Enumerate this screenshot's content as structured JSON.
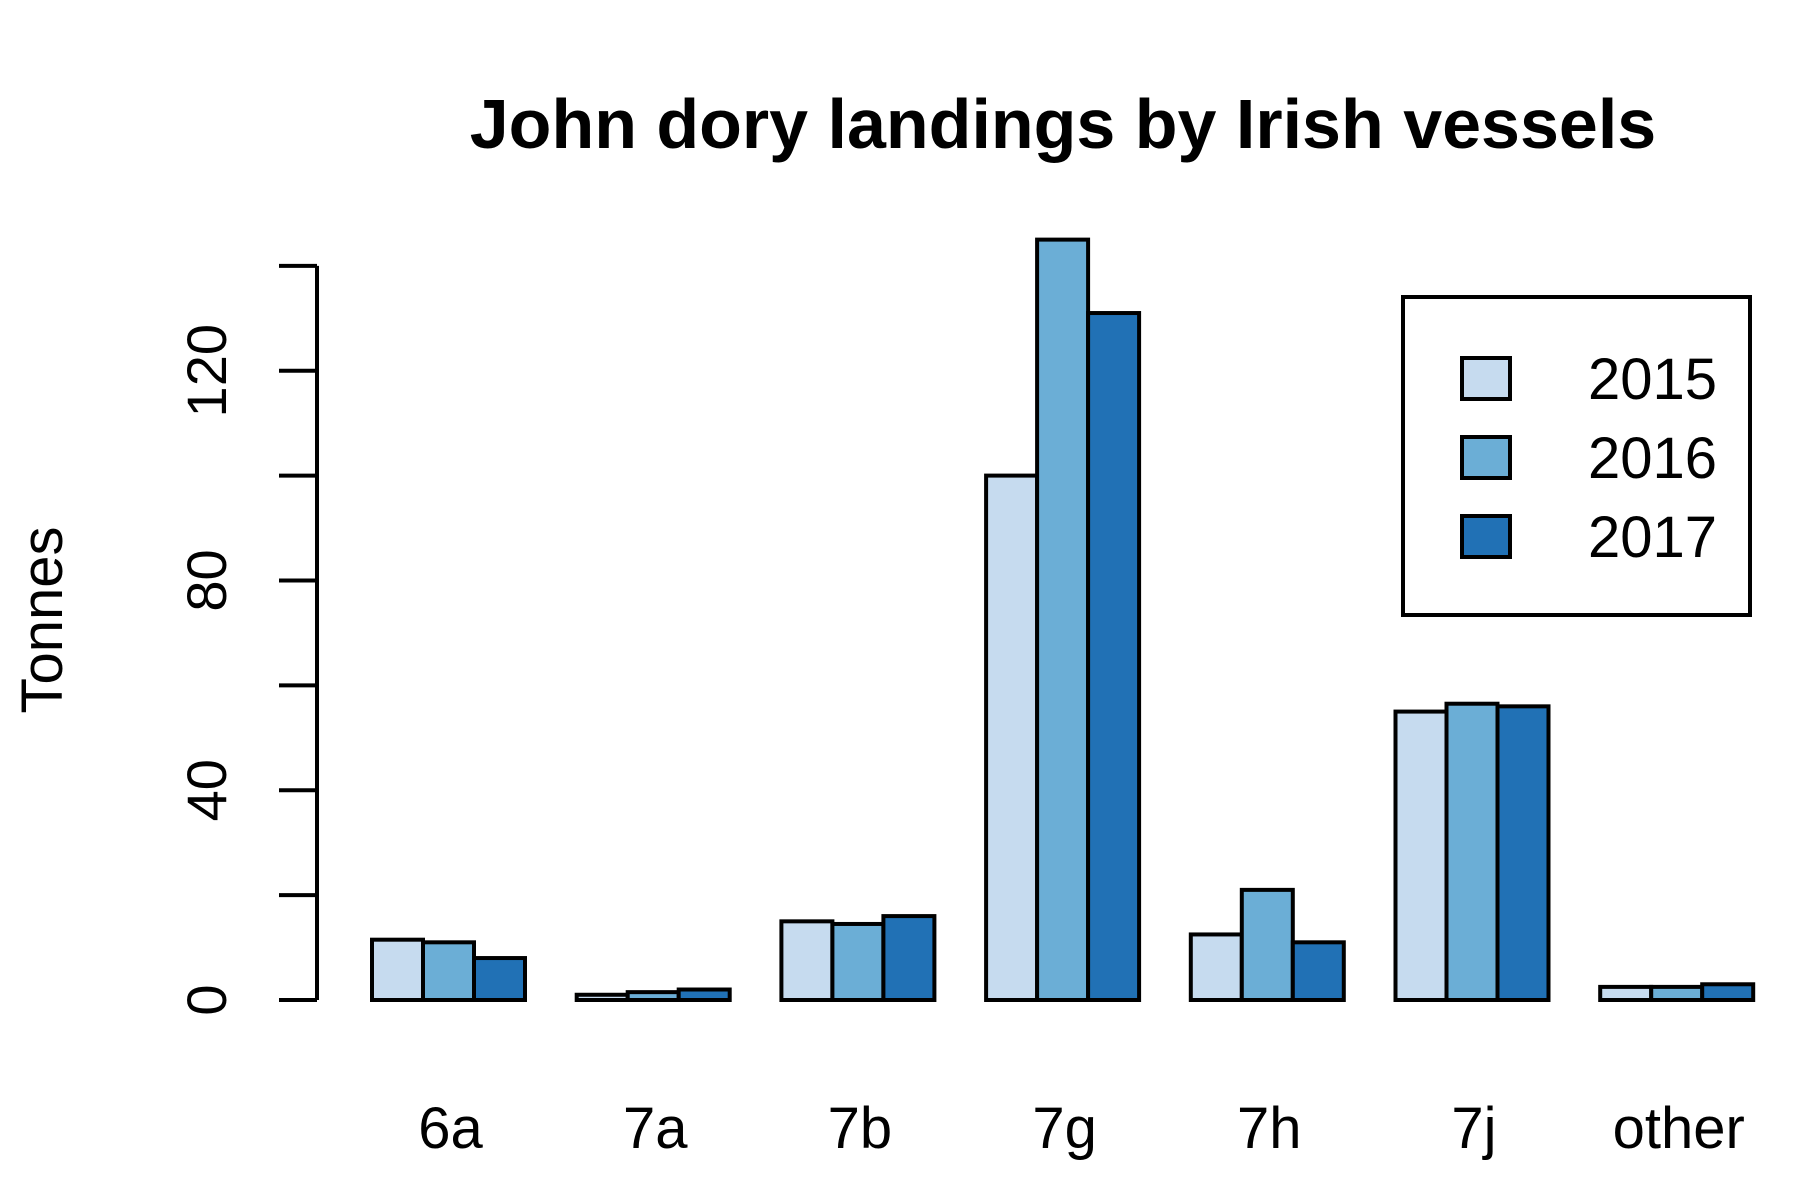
{
  "chart_data": {
    "type": "bar",
    "title": "John dory landings by Irish vessels",
    "xlabel": "",
    "ylabel": "Tonnes",
    "categories": [
      "6a",
      "7a",
      "7b",
      "7g",
      "7h",
      "7j",
      "other"
    ],
    "series": [
      {
        "name": "2015",
        "color": "#c6dbef",
        "values": [
          11.5,
          1,
          15,
          100,
          12.5,
          55,
          2.5
        ]
      },
      {
        "name": "2016",
        "color": "#6baed6",
        "values": [
          11,
          1.5,
          14.5,
          145,
          21,
          56.5,
          2.5
        ]
      },
      {
        "name": "2017",
        "color": "#2171b5",
        "values": [
          8,
          2,
          16,
          131,
          11,
          56,
          3
        ]
      }
    ],
    "yticks": [
      0,
      40,
      80,
      120
    ],
    "ylim": [
      0,
      140
    ],
    "legend_position": "top-right",
    "grid": false
  }
}
